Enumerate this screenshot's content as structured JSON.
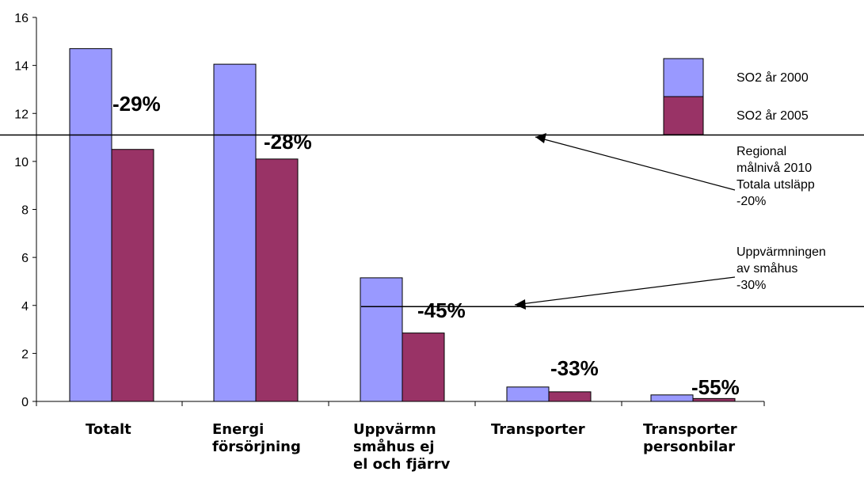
{
  "chart_data": {
    "type": "bar",
    "categories": [
      [
        "Totalt"
      ],
      [
        "Energi",
        "försörjning"
      ],
      [
        "Uppvärmn",
        "småhus ej",
        "el och fjärrv"
      ],
      [
        "Transporter"
      ],
      [
        "Transporter",
        "personbilar"
      ]
    ],
    "series": [
      {
        "name": "SO2 år 2000",
        "color": "#9999ff",
        "values": [
          14.7,
          14.05,
          5.15,
          0.6,
          0.27
        ]
      },
      {
        "name": "SO2 år 2005",
        "color": "#993366",
        "values": [
          10.5,
          10.1,
          2.85,
          0.4,
          0.12
        ]
      }
    ],
    "change_labels": [
      "-29%",
      "-28%",
      "-45%",
      "-33%",
      "-55%"
    ],
    "ylim": [
      0,
      16
    ],
    "yticks": [
      0,
      2,
      4,
      6,
      8,
      10,
      12,
      14,
      16
    ],
    "reference_lines": [
      {
        "y": 11.1,
        "label": [
          "Regional",
          "målnivå 2010",
          "Totala utsläpp",
          "-20%"
        ]
      },
      {
        "y": 3.95,
        "label": [
          "Uppvärmningen",
          "av småhus",
          "-30%"
        ]
      }
    ],
    "legend_position": "top-right",
    "grid": false
  }
}
